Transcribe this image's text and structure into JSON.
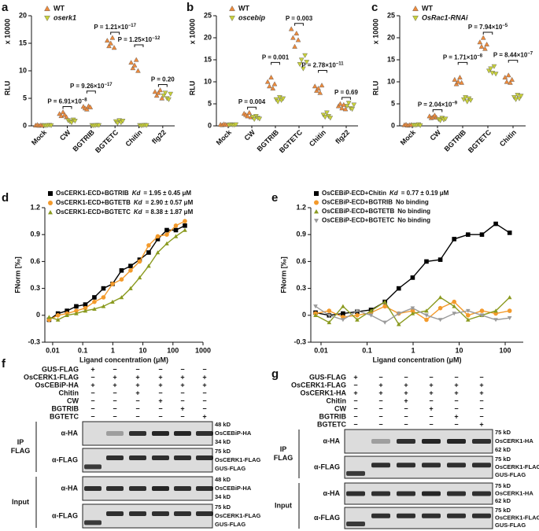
{
  "chart_data": [
    {
      "type": "dot",
      "panel": "a",
      "y_multiplier": "x 10000",
      "ylabel": "RLU",
      "categories": [
        "Mock",
        "CW",
        "BGTRIB",
        "BGTETC",
        "Chitin",
        "flg22"
      ],
      "ylim": [
        0,
        20
      ],
      "yticks": [
        0,
        5,
        10,
        15,
        20
      ],
      "series": [
        {
          "name": "WT",
          "color": "#ec8a3c",
          "marker": "triangle",
          "values": [
            [
              0.1,
              0.2,
              0.05,
              0.15,
              0.1
            ],
            [
              2.2,
              1.8,
              2.5,
              2.0,
              1.6
            ],
            [
              3.5,
              3.2,
              3.0,
              3.6,
              3.4
            ],
            [
              15.5,
              14.5,
              15.0,
              16.0,
              14.2
            ],
            [
              11.5,
              10.5,
              11.0,
              12.0,
              10.0
            ],
            [
              6.2,
              5.5,
              6.0,
              6.5,
              5.0
            ]
          ]
        },
        {
          "name": "oserk1",
          "color": "#c9d13a",
          "marker": "triangle-down",
          "values": [
            [
              0.1,
              0.05,
              0.1,
              0.15,
              0.08
            ],
            [
              1.0,
              0.8,
              0.6,
              1.1,
              0.9
            ],
            [
              0.1,
              0.05,
              0.1,
              0.15,
              0.1
            ],
            [
              0.8,
              0.5,
              1.0,
              0.6,
              0.9
            ],
            [
              0.1,
              0.05,
              0.1,
              0.15,
              0.1
            ],
            [
              5.5,
              6.0,
              5.0,
              4.8,
              5.8
            ]
          ]
        }
      ],
      "p_values": [
        null,
        {
          "text": "P = 6.91×10",
          "sup": "−8"
        },
        {
          "text": "P = 9.26×10",
          "sup": "−17"
        },
        {
          "text": "P = 1.21×10",
          "sup": "−17"
        },
        {
          "text": "P = 1.25×10",
          "sup": "−12"
        },
        {
          "text": "P = 0.20"
        }
      ]
    },
    {
      "type": "dot",
      "panel": "b",
      "y_multiplier": "x 10000",
      "ylabel": "RLU",
      "categories": [
        "Mock",
        "CW",
        "BGTRIB",
        "BGTETC",
        "Chitin",
        "flg22"
      ],
      "ylim": [
        0,
        25
      ],
      "yticks": [
        0,
        5,
        10,
        15,
        20,
        25
      ],
      "series": [
        {
          "name": "WT",
          "color": "#ec8a3c",
          "marker": "triangle",
          "values": [
            [
              0.3,
              0.2,
              0.4,
              0.3,
              0.25
            ],
            [
              2.8,
              2.5,
              2.2,
              3.0,
              2.0
            ],
            [
              10,
              9,
              11,
              8.5,
              9.5
            ],
            [
              22,
              20,
              18,
              21,
              19.5
            ],
            [
              9,
              8,
              8.5,
              7.5,
              9.2
            ],
            [
              4.5,
              5,
              4,
              4.8,
              3.8
            ]
          ]
        },
        {
          "name": "oscebip",
          "color": "#c9d13a",
          "marker": "triangle-down",
          "values": [
            [
              0.2,
              0.3,
              0.25,
              0.2,
              0.3
            ],
            [
              2.0,
              1.5,
              2.2,
              1.8,
              1.6
            ],
            [
              6,
              5.5,
              6.5,
              5.8,
              6.2
            ],
            [
              14,
              15,
              13,
              16,
              14.5
            ],
            [
              2.5,
              2.0,
              3.0,
              2.2,
              1.8
            ],
            [
              4.5,
              5.2,
              4.0,
              3.8,
              4.8
            ]
          ]
        }
      ],
      "p_values": [
        null,
        {
          "text": "P = 0.004"
        },
        {
          "text": "P = 0.001"
        },
        {
          "text": "P = 0.003"
        },
        {
          "text": "P = 2.78×10",
          "sup": "−11"
        },
        {
          "text": "P = 0.69"
        }
      ]
    },
    {
      "type": "dot",
      "panel": "c",
      "y_multiplier": "x 10000",
      "ylabel": "RLU",
      "categories": [
        "Mock",
        "CW",
        "BGTRIB",
        "BGTETC",
        "Chitin"
      ],
      "ylim": [
        0,
        25
      ],
      "yticks": [
        0,
        5,
        10,
        15,
        20,
        25
      ],
      "series": [
        {
          "name": "WT",
          "color": "#ec8a3c",
          "marker": "triangle",
          "values": [
            [
              0.2,
              0.3,
              0.1,
              0.2,
              0.25
            ],
            [
              2.2,
              1.8,
              2.0,
              2.4,
              1.9
            ],
            [
              10.5,
              9.5,
              10,
              11,
              9.8
            ],
            [
              19,
              18,
              20,
              17.5,
              18.5
            ],
            [
              11,
              10,
              11.5,
              9.8,
              10.5
            ]
          ]
        },
        {
          "name": "OsRac1-RNAi",
          "color": "#c9d13a",
          "marker": "triangle-down",
          "values": [
            [
              0.2,
              0.15,
              0.2,
              0.3,
              0.1
            ],
            [
              1.5,
              1.2,
              1.8,
              1.4,
              1.6
            ],
            [
              6,
              6.5,
              5.5,
              6.2,
              5.8
            ],
            [
              12.5,
              13,
              12,
              13.5,
              11.8
            ],
            [
              6.5,
              6.0,
              7.0,
              6.2,
              6.8
            ]
          ]
        }
      ],
      "p_values": [
        null,
        {
          "text": "P = 2.04×10",
          "sup": "−9"
        },
        {
          "text": "P = 1.71×10",
          "sup": "−8"
        },
        {
          "text": "P = 7.94×10",
          "sup": "−5"
        },
        {
          "text": "P = 8.44×10",
          "sup": "−7"
        }
      ]
    },
    {
      "type": "line",
      "panel": "d",
      "xlabel": "Ligand concentration (μM)",
      "ylabel": "FNorm [‰]",
      "xscale": "log",
      "xlim": [
        0.0055,
        1000
      ],
      "xticks": [
        0.01,
        0.1,
        1,
        10,
        100,
        1000
      ],
      "ylim": [
        -0.3,
        1.2
      ],
      "yticks": [
        -0.3,
        0,
        0.3,
        0.6,
        0.9,
        1.2
      ],
      "x": [
        0.0076,
        0.015,
        0.03,
        0.061,
        0.122,
        0.244,
        0.488,
        0.977,
        1.95,
        3.9,
        7.8,
        15.6,
        31.25,
        62.5,
        125,
        250
      ],
      "series": [
        {
          "name": "OsCERK1-ECD+BGTRIB",
          "note_label": "Kd",
          "note": "= 1.95 ± 0.45 μM",
          "color": "#000000",
          "marker": "square",
          "values": [
            -0.05,
            0.02,
            0.05,
            0.1,
            0.12,
            0.2,
            0.3,
            0.35,
            0.5,
            0.55,
            0.62,
            0.7,
            0.85,
            0.95,
            0.95,
            1.0
          ]
        },
        {
          "name": "OsCERK1-ECD+BGTETB",
          "note_label": "Kd",
          "note": "= 2.90 ± 0.57 μM",
          "color": "#f39a2b",
          "marker": "circle",
          "values": [
            -0.05,
            0,
            0.02,
            0.05,
            0.08,
            0.15,
            0.2,
            0.35,
            0.4,
            0.5,
            0.6,
            0.78,
            0.88,
            0.9,
            1.0,
            1.05
          ]
        },
        {
          "name": "OsCERK1-ECD+BGTETC",
          "note_label": "Kd",
          "note": "= 8.38 ± 1.87 μM",
          "color": "#8a9a1f",
          "marker": "triangle",
          "values": [
            -0.02,
            -0.05,
            0,
            0.02,
            0.05,
            0.07,
            0.1,
            0.15,
            0.2,
            0.3,
            0.42,
            0.55,
            0.7,
            0.8,
            0.88,
            0.95
          ]
        }
      ]
    },
    {
      "type": "line",
      "panel": "e",
      "xlabel": "Ligand concentration (μM)",
      "ylabel": "FNorm [‰]",
      "xscale": "log",
      "xlim": [
        0.006,
        247
      ],
      "xticks": [
        0.01,
        0.1,
        1,
        10,
        100
      ],
      "ylim": [
        -0.3,
        1.2
      ],
      "yticks": [
        -0.3,
        0,
        0.3,
        0.6,
        0.9,
        1.2
      ],
      "x": [
        0.0076,
        0.015,
        0.03,
        0.061,
        0.122,
        0.244,
        0.488,
        0.977,
        1.95,
        3.9,
        7.8,
        15.6,
        31.25,
        62.5,
        125
      ],
      "series": [
        {
          "name": "OsCEBiP-ECD+Chitin",
          "note_label": "Kd",
          "note": "= 0.77 ± 0.19 μM",
          "color": "#000000",
          "marker": "square",
          "values": [
            0.03,
            0.0,
            0.02,
            0.04,
            0.06,
            0.15,
            0.3,
            0.42,
            0.6,
            0.62,
            0.85,
            0.9,
            0.9,
            1.02,
            0.92
          ]
        },
        {
          "name": "OsCEBiP-ECD+BGTRIB",
          "note": "No binding",
          "color": "#f39a2b",
          "marker": "circle",
          "values": [
            0.02,
            0.05,
            -0.02,
            0.0,
            0.03,
            0.1,
            0.02,
            0.05,
            -0.05,
            0.08,
            0.15,
            0.0,
            0.05,
            0.02,
            0.05
          ]
        },
        {
          "name": "OsCEBiP-ECD+BGTETB",
          "note": "No binding",
          "color": "#8a9a1f",
          "marker": "triangle",
          "values": [
            0.0,
            -0.08,
            0.1,
            -0.05,
            0.05,
            0.15,
            -0.1,
            0.02,
            0.05,
            0.2,
            0.1,
            -0.05,
            0.0,
            0.05,
            0.2
          ]
        },
        {
          "name": "OsCEBiP-ECD+BGTETC",
          "note": "No binding",
          "color": "#9a9a9a",
          "marker": "triangle-down",
          "values": [
            0.1,
            0.0,
            -0.05,
            0.05,
            0.0,
            -0.08,
            0.02,
            0.08,
            0.0,
            -0.05,
            0.02,
            0.05,
            0.0,
            -0.05,
            -0.03
          ]
        }
      ]
    }
  ],
  "blots": [
    {
      "panel": "f",
      "conditions": [
        {
          "name": "GUS-FLAG",
          "signs": [
            "+",
            "−",
            "−",
            "−",
            "−",
            "−"
          ]
        },
        {
          "name": "OsCERK1-FLAG",
          "signs": [
            "−",
            "+",
            "+",
            "+",
            "+",
            "+"
          ]
        },
        {
          "name": "OsCEBiP-HA",
          "signs": [
            "+",
            "+",
            "+",
            "+",
            "+",
            "+"
          ]
        },
        {
          "name": "Chitin",
          "signs": [
            "−",
            "−",
            "+",
            "−",
            "−",
            "−"
          ]
        },
        {
          "name": "CW",
          "signs": [
            "−",
            "−",
            "−",
            "+",
            "−",
            "−"
          ]
        },
        {
          "name": "BGTRIB",
          "signs": [
            "−",
            "−",
            "−",
            "−",
            "+",
            "−"
          ]
        },
        {
          "name": "BGTETC",
          "signs": [
            "−",
            "−",
            "−",
            "−",
            "−",
            "+"
          ]
        }
      ],
      "groups": [
        {
          "label": [
            "IP",
            "FLAG"
          ],
          "strips": [
            {
              "antibody": "α-HA",
              "markers": [
                "48 kD",
                "OsCEBiP-HA",
                "34 kD"
              ]
            },
            {
              "antibody": "α-FLAG",
              "markers": [
                "75 kD",
                "OsCERK1-FLAG",
                "GUS-FLAG"
              ]
            }
          ]
        },
        {
          "label": [
            "Input"
          ],
          "strips": [
            {
              "antibody": "α-HA",
              "markers": [
                "48 kD",
                "OsCEBiP-HA",
                "34 kD"
              ]
            },
            {
              "antibody": "α-FLAG",
              "markers": [
                "75 kD",
                "OsCERK1-FLAG",
                "GUS-FLAG"
              ]
            }
          ]
        }
      ]
    },
    {
      "panel": "g",
      "conditions": [
        {
          "name": "GUS-FLAG",
          "signs": [
            "+",
            "−",
            "−",
            "−",
            "−",
            "−"
          ]
        },
        {
          "name": "OsCERK1-FLAG",
          "signs": [
            "−",
            "+",
            "+",
            "+",
            "+",
            "+"
          ]
        },
        {
          "name": "OsCERK1-HA",
          "signs": [
            "+",
            "+",
            "+",
            "+",
            "+",
            "+"
          ]
        },
        {
          "name": "Chitin",
          "signs": [
            "−",
            "−",
            "+",
            "−",
            "−",
            "−"
          ]
        },
        {
          "name": "CW",
          "signs": [
            "−",
            "−",
            "−",
            "+",
            "−",
            "−"
          ]
        },
        {
          "name": "BGTRIB",
          "signs": [
            "−",
            "−",
            "−",
            "−",
            "+",
            "−"
          ]
        },
        {
          "name": "BGTETC",
          "signs": [
            "−",
            "−",
            "−",
            "−",
            "−",
            "+"
          ]
        }
      ],
      "groups": [
        {
          "label": [
            "IP",
            "FLAG"
          ],
          "strips": [
            {
              "antibody": "α-HA",
              "markers": [
                "75 kD",
                "OsCERK1-HA",
                "62 kD"
              ]
            },
            {
              "antibody": "α-FLAG",
              "markers": [
                "75 kD",
                "OsCERK1-FLAG",
                "GUS-FLAG"
              ]
            }
          ]
        },
        {
          "label": [
            "Input"
          ],
          "strips": [
            {
              "antibody": "α-HA",
              "markers": [
                "75 kD",
                "OsCERK1-HA",
                "62 kD"
              ]
            },
            {
              "antibody": "α-FLAG",
              "markers": [
                "75 kD",
                "OsCERK1-FLAG",
                "GUS-FLAG"
              ]
            }
          ]
        }
      ]
    }
  ]
}
